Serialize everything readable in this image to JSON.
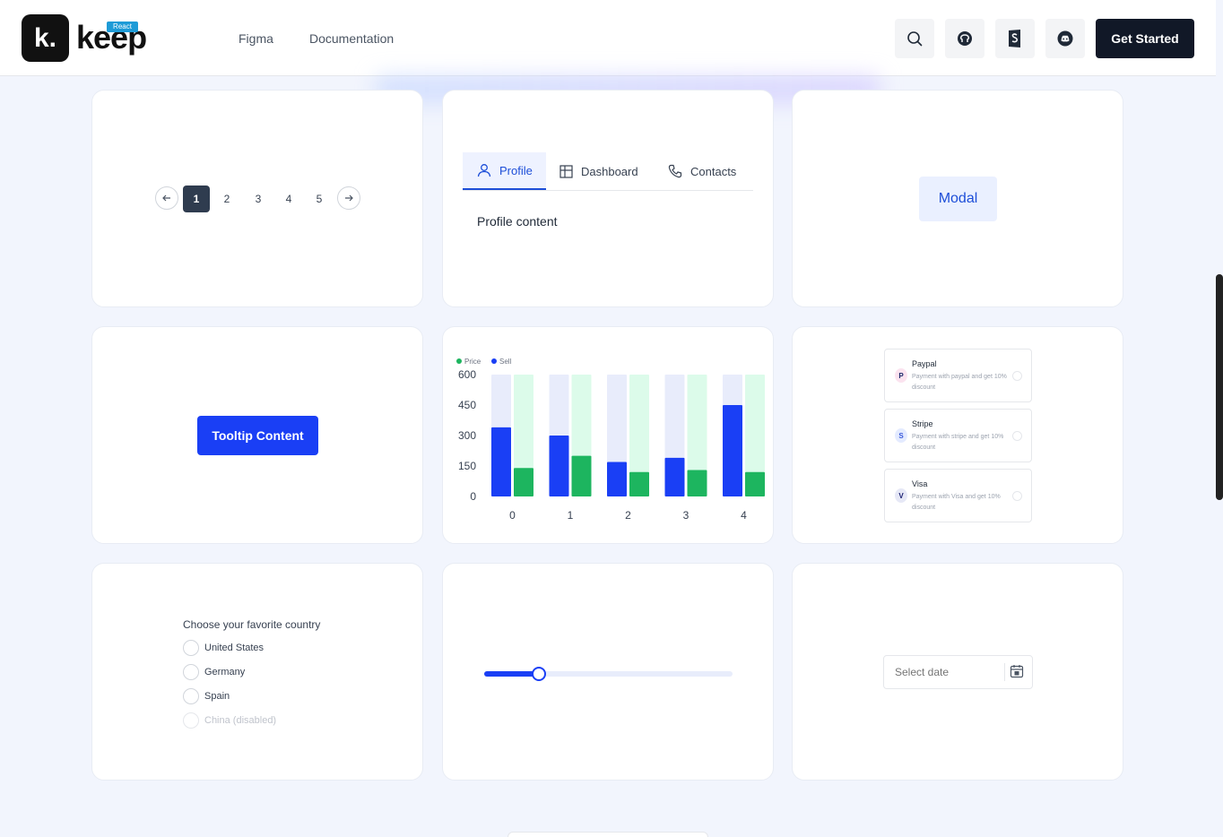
{
  "header": {
    "logo_letter": "k.",
    "logo_word": "keep",
    "badge": "React",
    "nav": [
      "Figma",
      "Documentation"
    ],
    "icons": [
      "search-icon",
      "github-icon",
      "storybook-icon",
      "discord-icon"
    ],
    "cta": "Get Started"
  },
  "pagination": {
    "pages": [
      "1",
      "2",
      "3",
      "4",
      "5"
    ],
    "active": 1
  },
  "tabs": {
    "items": [
      {
        "label": "Profile",
        "icon": "user-icon"
      },
      {
        "label": "Dashboard",
        "icon": "grid-icon"
      },
      {
        "label": "Contacts",
        "icon": "phone-icon"
      }
    ],
    "active": 0,
    "content": "Profile content"
  },
  "modal": {
    "button": "Modal"
  },
  "tooltip": {
    "button": "Tooltip Content"
  },
  "chart_data": {
    "type": "bar",
    "categories": [
      "0",
      "1",
      "2",
      "3",
      "4"
    ],
    "series": [
      {
        "name": "Sell",
        "values": [
          340,
          300,
          170,
          190,
          450
        ],
        "color": "#1a3ff5",
        "track": "#e8ecfb"
      },
      {
        "name": "Price",
        "values": [
          140,
          200,
          120,
          130,
          120
        ],
        "color": "#1db55f",
        "track": "#dcfbea"
      }
    ],
    "legend": [
      "Price",
      "Sell"
    ],
    "legend_colors": [
      "#1db55f",
      "#1a3ff5"
    ],
    "yticks": [
      "0",
      "150",
      "300",
      "450",
      "600"
    ],
    "ylim": [
      0,
      600
    ],
    "legend_position": "top-left",
    "grid": false
  },
  "payment": {
    "items": [
      {
        "title": "Paypal",
        "desc": "Payment with paypal and get 10% discount",
        "icon": "paypal-icon",
        "icon_letter": "P",
        "icon_bg": "#fbe3ef",
        "icon_color": "#1f2a6b"
      },
      {
        "title": "Stripe",
        "desc": "Payment with stripe and get 10% discount",
        "icon": "stripe-icon",
        "icon_letter": "S",
        "icon_bg": "#e4ebff",
        "icon_color": "#3b5bdb"
      },
      {
        "title": "Visa",
        "desc": "Payment with Visa and get 10% discount",
        "icon": "visa-icon",
        "icon_letter": "V",
        "icon_bg": "#e6e8f6",
        "icon_color": "#1a1f71"
      }
    ]
  },
  "radio": {
    "title": "Choose your favorite country",
    "options": [
      {
        "label": "United States",
        "disabled": false
      },
      {
        "label": "Germany",
        "disabled": false
      },
      {
        "label": "Spain",
        "disabled": false
      },
      {
        "label": "China (disabled)",
        "disabled": true
      }
    ]
  },
  "slider": {
    "value": 0.22
  },
  "datepicker": {
    "placeholder": "Select date",
    "icon": "calendar-icon"
  }
}
